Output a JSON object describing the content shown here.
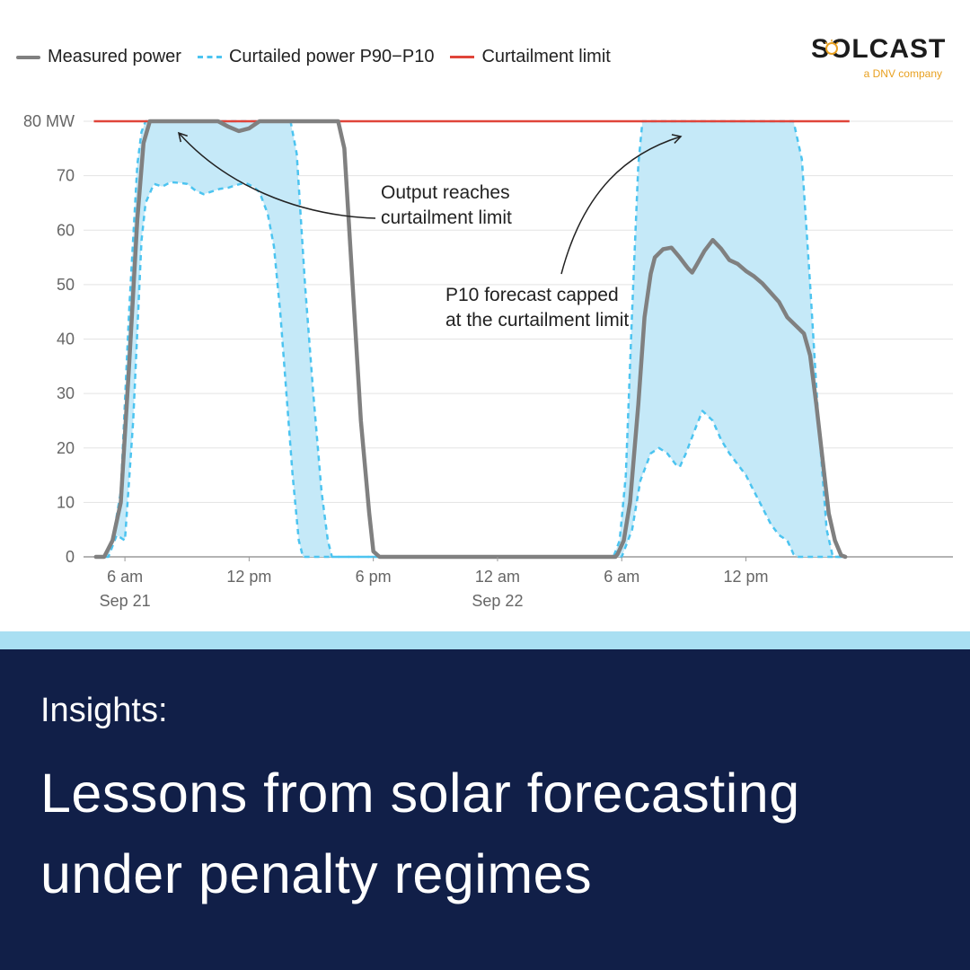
{
  "legend": {
    "measured": "Measured power",
    "band": "Curtailed power P90−P10",
    "limit": "Curtailment limit"
  },
  "logo": {
    "name": "SOLCAST",
    "tagline": "a DNV company",
    "icon": "sun-icon"
  },
  "chart_data": {
    "type": "line",
    "title": "",
    "xlabel": "",
    "ylabel": "",
    "ylim": [
      0,
      80
    ],
    "y_ticks": [
      "0",
      "10",
      "20",
      "30",
      "40",
      "50",
      "60",
      "70",
      "80 MW"
    ],
    "x_range_hours": [
      4.0,
      46.0
    ],
    "x_ticks": [
      {
        "hour": 6,
        "label": "6 am",
        "sub": "Sep 21"
      },
      {
        "hour": 12,
        "label": "12 pm",
        "sub": ""
      },
      {
        "hour": 18,
        "label": "6 pm",
        "sub": ""
      },
      {
        "hour": 24,
        "label": "12 am",
        "sub": "Sep 22"
      },
      {
        "hour": 30,
        "label": "6 am",
        "sub": ""
      },
      {
        "hour": 36,
        "label": "12 pm",
        "sub": ""
      }
    ],
    "grid": true,
    "legend_position": "top-left",
    "curtailment_limit": 80,
    "series": [
      {
        "name": "Measured power",
        "color": "#808080",
        "points": [
          [
            4.6,
            0
          ],
          [
            5.0,
            0
          ],
          [
            5.4,
            3
          ],
          [
            5.8,
            10
          ],
          [
            6.2,
            35
          ],
          [
            6.6,
            62
          ],
          [
            6.9,
            76
          ],
          [
            7.2,
            80
          ],
          [
            9.0,
            80
          ],
          [
            10.5,
            80
          ],
          [
            11.0,
            79
          ],
          [
            11.5,
            78.2
          ],
          [
            12.0,
            78.7
          ],
          [
            12.5,
            80
          ],
          [
            14.0,
            80
          ],
          [
            15.5,
            80
          ],
          [
            16.3,
            80
          ],
          [
            16.6,
            75
          ],
          [
            17.0,
            50
          ],
          [
            17.4,
            25
          ],
          [
            17.8,
            8
          ],
          [
            18.0,
            1
          ],
          [
            18.3,
            0
          ],
          [
            25.0,
            0
          ],
          [
            29.7,
            0
          ],
          [
            29.8,
            0.5
          ],
          [
            30.1,
            3
          ],
          [
            30.4,
            10
          ],
          [
            30.8,
            28
          ],
          [
            31.1,
            44
          ],
          [
            31.4,
            52
          ],
          [
            31.6,
            55
          ],
          [
            32.0,
            56.5
          ],
          [
            32.4,
            56.8
          ],
          [
            32.8,
            55
          ],
          [
            33.2,
            53
          ],
          [
            33.4,
            52.2
          ],
          [
            33.6,
            53.5
          ],
          [
            34.0,
            56.2
          ],
          [
            34.4,
            58.2
          ],
          [
            34.8,
            56.6
          ],
          [
            35.2,
            54.5
          ],
          [
            35.6,
            53.8
          ],
          [
            36.0,
            52.5
          ],
          [
            36.4,
            51.5
          ],
          [
            36.8,
            50.2
          ],
          [
            37.2,
            48.5
          ],
          [
            37.6,
            46.8
          ],
          [
            38.0,
            44
          ],
          [
            38.4,
            42.5
          ],
          [
            38.8,
            41
          ],
          [
            39.1,
            37
          ],
          [
            39.4,
            28
          ],
          [
            39.7,
            18
          ],
          [
            40.0,
            8
          ],
          [
            40.3,
            3
          ],
          [
            40.6,
            0.3
          ],
          [
            40.8,
            0
          ]
        ]
      },
      {
        "name": "P90",
        "color": "#4cc4f0",
        "points": [
          [
            4.6,
            0
          ],
          [
            5.2,
            0
          ],
          [
            5.6,
            4
          ],
          [
            6.0,
            3
          ],
          [
            6.4,
            25
          ],
          [
            6.8,
            58
          ],
          [
            7.0,
            65
          ],
          [
            7.4,
            68.5
          ],
          [
            7.8,
            68
          ],
          [
            8.2,
            68.8
          ],
          [
            8.6,
            68.7
          ],
          [
            9.0,
            68.5
          ],
          [
            9.4,
            67.3
          ],
          [
            9.8,
            66.6
          ],
          [
            10.2,
            67.1
          ],
          [
            10.6,
            67.6
          ],
          [
            11.0,
            67.8
          ],
          [
            11.4,
            68.3
          ],
          [
            11.8,
            68.7
          ],
          [
            12.2,
            68
          ],
          [
            12.5,
            67
          ],
          [
            12.9,
            63
          ],
          [
            13.2,
            57
          ],
          [
            13.5,
            45
          ],
          [
            13.8,
            30
          ],
          [
            14.1,
            15
          ],
          [
            14.4,
            3
          ],
          [
            14.6,
            0
          ],
          [
            25.0,
            0
          ],
          [
            29.8,
            0
          ],
          [
            30.0,
            0
          ],
          [
            30.5,
            5
          ],
          [
            30.9,
            14
          ],
          [
            31.4,
            19
          ],
          [
            31.8,
            20
          ],
          [
            32.2,
            19
          ],
          [
            32.6,
            17
          ],
          [
            32.8,
            16.5
          ],
          [
            33.1,
            19
          ],
          [
            33.6,
            24
          ],
          [
            33.9,
            26.8
          ],
          [
            34.4,
            25
          ],
          [
            34.8,
            21.5
          ],
          [
            35.2,
            19
          ],
          [
            35.6,
            17
          ],
          [
            36.0,
            15
          ],
          [
            36.4,
            12
          ],
          [
            36.8,
            9
          ],
          [
            37.2,
            6
          ],
          [
            37.6,
            4
          ],
          [
            38.0,
            3
          ],
          [
            38.3,
            0.5
          ],
          [
            38.5,
            0
          ],
          [
            40.8,
            0
          ]
        ]
      },
      {
        "name": "P10",
        "color": "#4cc4f0",
        "points": [
          [
            4.6,
            0
          ],
          [
            5.0,
            0
          ],
          [
            5.4,
            3
          ],
          [
            5.8,
            12
          ],
          [
            6.2,
            45
          ],
          [
            6.6,
            72
          ],
          [
            6.8,
            78
          ],
          [
            7.0,
            80
          ],
          [
            13.5,
            80
          ],
          [
            14.0,
            80
          ],
          [
            14.3,
            74
          ],
          [
            14.7,
            50
          ],
          [
            15.1,
            30
          ],
          [
            15.5,
            12
          ],
          [
            15.8,
            3
          ],
          [
            16.0,
            0
          ],
          [
            25.0,
            0
          ],
          [
            29.6,
            0
          ],
          [
            29.9,
            3
          ],
          [
            30.2,
            15
          ],
          [
            30.5,
            45
          ],
          [
            30.8,
            72
          ],
          [
            31.0,
            80
          ],
          [
            36.0,
            80
          ],
          [
            38.3,
            80
          ],
          [
            38.7,
            73
          ],
          [
            39.1,
            50
          ],
          [
            39.5,
            25
          ],
          [
            39.9,
            5
          ],
          [
            40.2,
            0
          ],
          [
            40.8,
            0
          ]
        ]
      },
      {
        "name": "Curtailment limit",
        "color": "#e0453a",
        "points": [
          [
            4.5,
            80
          ],
          [
            41.0,
            80
          ]
        ]
      }
    ],
    "annotations": [
      {
        "lines": [
          "Output reaches",
          "curtailment limit"
        ]
      },
      {
        "lines": [
          "P10 forecast capped",
          "at the curtailment limit"
        ]
      }
    ]
  },
  "banner": {
    "label": "Insights:",
    "headline_line1": "Lessons from solar forecasting",
    "headline_line2": "under penalty regimes"
  }
}
